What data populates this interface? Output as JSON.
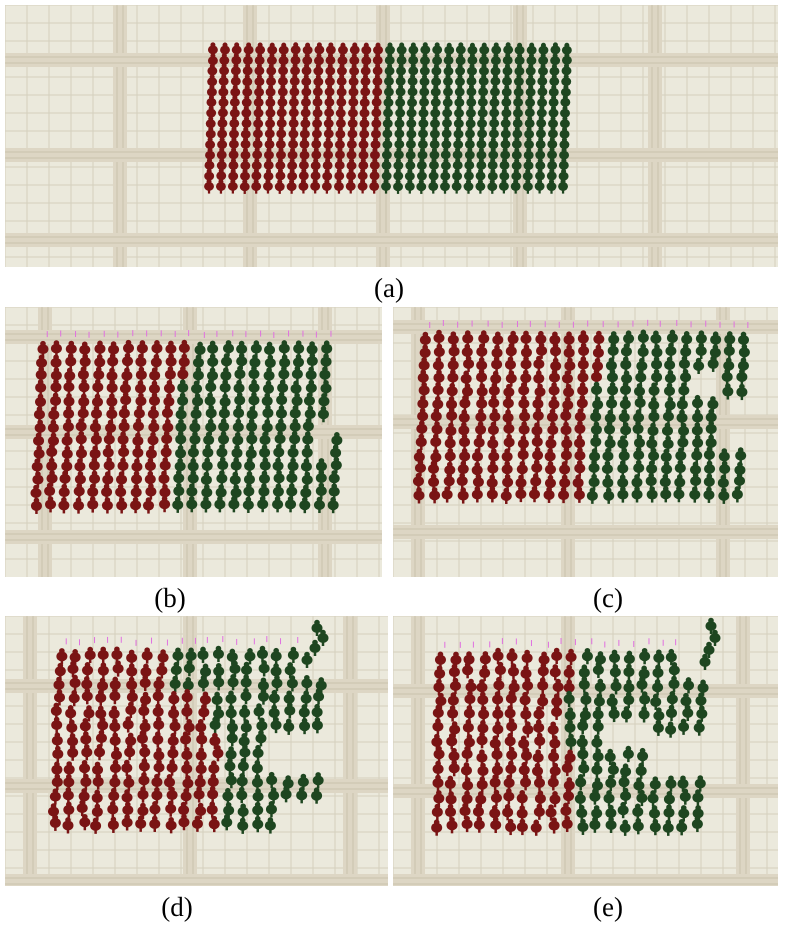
{
  "figure": {
    "panels": [
      {
        "id": "a",
        "caption": "(a)"
      },
      {
        "id": "b",
        "caption": "(b)"
      },
      {
        "id": "c",
        "caption": "(c)"
      },
      {
        "id": "d",
        "caption": "(d)"
      },
      {
        "id": "e",
        "caption": "(e)"
      }
    ],
    "colors": {
      "red_crowd": "#7a1414",
      "green_crowd": "#1e4620",
      "floor": "#ebe9dc",
      "tile_line": "#d4d0bd",
      "path": "#ddd6c4",
      "marker": "#e070e0"
    }
  }
}
